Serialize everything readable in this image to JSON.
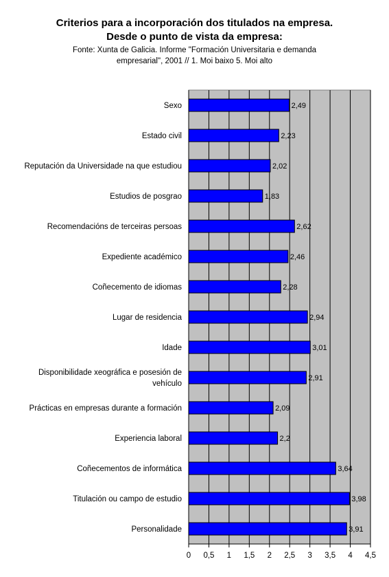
{
  "chart_data": {
    "type": "bar",
    "orientation": "horizontal",
    "title": "Criterios para a incorporación dos titulados na empresa.",
    "subtitle": "Desde o punto de vista da empresa:",
    "source_line1": "Fonte: Xunta de Galicia. Informe \"Formación Universitaria e demanda",
    "source_line2": "empresarial\", 2001 // 1. Moi baixo 5. Moi alto",
    "categories": [
      "Sexo",
      "Estado civil",
      "Reputación da Universidade na que estudiou",
      "Estudios de posgrao",
      "Recomendacións de terceiras persoas",
      "Expediente académico",
      "Coñecemento de idiomas",
      "Lugar de residencia",
      "Idade",
      "Disponibilidade xeográfica e posesión de vehículo",
      "Prácticas en empresas durante a formación",
      "Experiencia laboral",
      "Coñecementos de informática",
      "Titulación ou campo de estudio",
      "Personalidade"
    ],
    "category_lines": [
      [
        "Sexo"
      ],
      [
        "Estado civil"
      ],
      [
        "Reputación da Universidade na que estudiou"
      ],
      [
        "Estudios de posgrao"
      ],
      [
        "Recomendacións de terceiras persoas"
      ],
      [
        "Expediente académico"
      ],
      [
        "Coñecemento de idiomas"
      ],
      [
        "Lugar de residencia"
      ],
      [
        "Idade"
      ],
      [
        "Disponibilidade xeográfica e posesión de",
        "vehículo"
      ],
      [
        "Prácticas en empresas durante a formación"
      ],
      [
        "Experiencia laboral"
      ],
      [
        "Coñecementos de informática"
      ],
      [
        "Titulación ou campo de estudio"
      ],
      [
        "Personalidade"
      ]
    ],
    "values": [
      2.49,
      2.23,
      2.02,
      1.83,
      2.62,
      2.46,
      2.28,
      2.94,
      3.01,
      2.91,
      2.09,
      2.2,
      3.64,
      3.98,
      3.91
    ],
    "value_labels": [
      "2,49",
      "2,23",
      "2,02",
      "1,83",
      "2,62",
      "2,46",
      "2,28",
      "2,94",
      "3,01",
      "2,91",
      "2,09",
      "2,2",
      "3,64",
      "3,98",
      "3,91"
    ],
    "x_ticks": [
      0,
      0.5,
      1,
      1.5,
      2,
      2.5,
      3,
      3.5,
      4,
      4.5
    ],
    "x_tick_labels": [
      "0",
      "0,5",
      "1",
      "1,5",
      "2",
      "2,5",
      "3",
      "3,5",
      "4",
      "4,5"
    ],
    "xlim": [
      0,
      4.5
    ],
    "grid": true,
    "plot_background": "#c0c0c0",
    "bar_color": "#0000ff",
    "bar_border": "#000000"
  }
}
